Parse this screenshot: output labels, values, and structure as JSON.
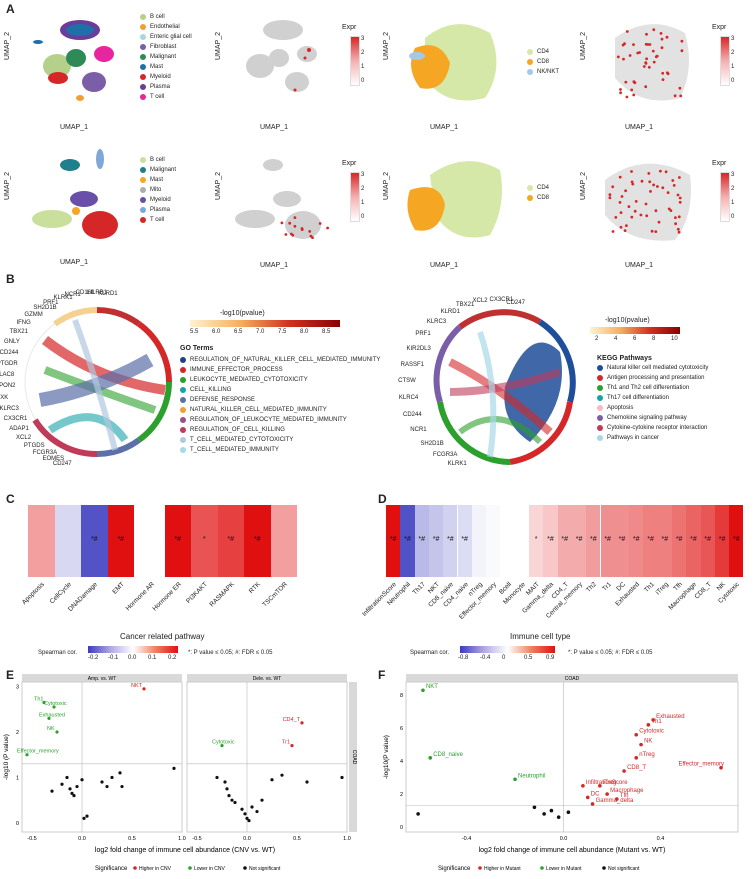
{
  "panel_labels": {
    "a": "A",
    "b": "B",
    "c": "C",
    "d": "D",
    "e": "E",
    "f": "F"
  },
  "umap": {
    "xlabel": "UMAP_1",
    "ylabel": "UMAP_2",
    "expr_label": "Expr",
    "row1_celltypes": [
      "B cell",
      "Endothelial",
      "Enteric glial cell",
      "Fibroblast",
      "Malignant",
      "Mast",
      "Myeloid",
      "Plasma",
      "T cell"
    ],
    "row1_colors": [
      "#b5d08a",
      "#f0a030",
      "#a6d8d8",
      "#7b5ea8",
      "#2e8b57",
      "#1f6fa8",
      "#d62728",
      "#6a3d9a",
      "#e6259e"
    ],
    "row1_scale_ticks": [
      "3",
      "2",
      "1",
      "0"
    ],
    "row1_tsubtypes": [
      "CD4",
      "CD8",
      "NK/NKT"
    ],
    "row1_tsub_colors": [
      "#d6e8a8",
      "#f5a623",
      "#a6c8e8"
    ],
    "row1_scale2_ticks": [
      "3",
      "2",
      "1",
      "0"
    ],
    "row2_celltypes": [
      "B cell",
      "Malignant",
      "Mast",
      "Mito",
      "Myeloid",
      "Plasma",
      "T cell"
    ],
    "row2_colors": [
      "#c9e09c",
      "#1f7f8a",
      "#f5a623",
      "#aeaeae",
      "#6a4fa8",
      "#7fa8d8",
      "#d62728"
    ],
    "row2_scale_ticks": [
      "3",
      "2",
      "1",
      "0"
    ],
    "row2_tsubtypes": [
      "CD4",
      "CD8"
    ],
    "row2_tsub_colors": [
      "#d6e8a8",
      "#f5a623"
    ],
    "row2_scale2_ticks": [
      "3",
      "2",
      "1",
      "0"
    ]
  },
  "go": {
    "genes": [
      "KLRD1",
      "LILRB1",
      "CD160",
      "NCR1",
      "KLRK1",
      "PRF1",
      "SH2D1B",
      "GZMM",
      "IFNG",
      "TBX21",
      "GNLY",
      "CD244",
      "PTGDR",
      "PLAC8",
      "SPON2",
      "TXK",
      "KLRC3",
      "CX3CR1",
      "ADAP1",
      "XCL2",
      "PTGDS",
      "FCGR3A",
      "EOMES",
      "CD247"
    ],
    "scale_title": "-log10(pvalue)",
    "scale_ticks": [
      "5.5",
      "6.0",
      "6.5",
      "7.0",
      "7.5",
      "8.0",
      "8.5"
    ],
    "terms_title": "GO Terms",
    "terms": [
      "REGULATION_OF_NATURAL_KILLER_CELL_MEDIATED_IMMUNITY",
      "IMMUNE_EFFECTOR_PROCESS",
      "LEUKOCYTE_MEDIATED_CYTOTOXICITY",
      "CELL_KILLING",
      "DEFENSE_RESPONSE",
      "NATURAL_KILLER_CELL_MEDIATED_IMMUNITY",
      "REGULATION_OF_LEUKOCYTE_MEDIATED_IMMUNITY",
      "REGULATION_OF_CELL_KILLING",
      "T_CELL_MEDIATED_CYTOTOXICITY",
      "T_CELL_MEDIATED_IMMUNITY"
    ],
    "term_colors": [
      "#1f3f8f",
      "#d62728",
      "#2ca02c",
      "#17a2a8",
      "#5b6fa8",
      "#f0a030",
      "#9b4f8a",
      "#c03a5a",
      "#b0c8e0",
      "#a8d8e8"
    ]
  },
  "kegg": {
    "genes": [
      "CD247",
      "CX3CR1",
      "XCL2",
      "TBX21",
      "KLRD1",
      "KLRC3",
      "PRF1",
      "KIR2DL3",
      "RASSF1",
      "CTSW",
      "KLRC4",
      "CD244",
      "NCR1",
      "SH2D1B",
      "FCGR3A",
      "KLRK1"
    ],
    "scale_title": "-log10(pvalue)",
    "scale_ticks": [
      "2",
      "4",
      "6",
      "8",
      "10"
    ],
    "title": "KEGG Pathways",
    "pathways": [
      "Natural killer cell mediated cytotoxicity",
      "Antigen processing and presentation",
      "Th1 and Th2 cell differentiation",
      "Th17 cell differentiation",
      "Apoptosis",
      "Chemokine signaling pathway",
      "Cytokine-cytokine receptor interaction",
      "Pathways in cancer"
    ],
    "pathway_colors": [
      "#1f4e9a",
      "#d62728",
      "#2ca02c",
      "#17a2a8",
      "#f8b8c8",
      "#7b5ea8",
      "#c03a5a",
      "#a8d8e8"
    ]
  },
  "heatmap_c": {
    "title": "Cancer related pathway",
    "legend_title": "Spearman cor.",
    "legend_ticks": [
      "-0.2",
      "-0.1",
      "0.0",
      "0.1",
      "0.2"
    ],
    "note": "*: P value ≤ 0.05; #: FDR ≤ 0.05",
    "categories": [
      "Apoptosis",
      "CellCycle",
      "DNADamage",
      "EMT",
      "Hormone AR",
      "Hormone ER",
      "PI3KAKT",
      "RASMAPK",
      "RTK",
      "TSCmTOR"
    ],
    "values": [
      0.1,
      -0.05,
      -0.22,
      0.25,
      0.0,
      0.25,
      0.18,
      0.2,
      0.26,
      0.1
    ],
    "marks": [
      "",
      "",
      "*#",
      "*#",
      "",
      "*#",
      "*",
      "*#",
      "*#",
      ""
    ]
  },
  "heatmap_d": {
    "title": "Immune cell type",
    "legend_title": "Spearman cor.",
    "legend_ticks": [
      "-0.8",
      "-0.4",
      "0",
      "0.5",
      "0.9"
    ],
    "note": "*: P value ≤ 0.05; #: FDR ≤ 0.05",
    "categories": [
      "InfiltrationScore",
      "Neutrophil",
      "Th17",
      "NKT",
      "CD8_naive",
      "CD4_naive",
      "nTreg",
      "Effector_memory",
      "Bcell",
      "Monocyte",
      "MAIT",
      "Gamma_delta",
      "CD4_T",
      "Central_memory",
      "Th2",
      "Tr1",
      "DC",
      "Exhausted",
      "Th1",
      "iTreg",
      "Tfh",
      "Macrophage",
      "CD8_T",
      "NK",
      "Cytotoxic"
    ],
    "values": [
      0.85,
      -0.75,
      -0.3,
      -0.25,
      -0.2,
      -0.15,
      -0.05,
      -0.02,
      0.0,
      0.0,
      0.15,
      0.2,
      0.3,
      0.3,
      0.35,
      0.4,
      0.4,
      0.42,
      0.45,
      0.45,
      0.5,
      0.55,
      0.6,
      0.7,
      0.85
    ],
    "marks": [
      "*#",
      "*#",
      "*#",
      "*#",
      "*#",
      "*#",
      "",
      "",
      "",
      "",
      "*",
      "*#",
      "*#",
      "*#",
      "*#",
      "*#",
      "*#",
      "*#",
      "*#",
      "*#",
      "*#",
      "*#",
      "*#",
      "*#",
      "*#"
    ]
  },
  "volcano_e": {
    "ylabel": "-log10 (P value)",
    "xlabel": "log2 fold change of immune cell abundance (CNV vs. WT)",
    "facet_left": "Amp. vs. WT",
    "facet_right": "Dele. vs. WT",
    "strip_right": "COAD",
    "xticks_left": [
      "-0.5",
      "0.0",
      "0.5",
      "1.0"
    ],
    "xticks_right": [
      "-0.5",
      "0.0",
      "0.5",
      "1.0"
    ],
    "yticks": [
      "0",
      "1",
      "2",
      "3"
    ],
    "legend_title": "Significance",
    "legend_items": [
      "Higher in CNV",
      "Lower in CNV",
      "Not significant"
    ],
    "legend_colors": [
      "#d62728",
      "#2ca02c",
      "#111111"
    ],
    "labels_left": [
      "NKT",
      "Th1",
      "Cytotoxic",
      "Exhausted",
      "NK",
      "Effector_memory"
    ],
    "labels_right": [
      "CD4_T",
      "Cytotoxic",
      "Tr1"
    ]
  },
  "volcano_f": {
    "strip": "COAD",
    "ylabel": "-log10(P value)",
    "xlabel": "log2 fold change of immune cell abundance (Mutant vs. WT)",
    "xticks": [
      "-0.4",
      "0.0",
      "0.4"
    ],
    "yticks": [
      "0",
      "2",
      "4",
      "6",
      "8"
    ],
    "legend_title": "Significance",
    "legend_items": [
      "Higher in Mutant",
      "Lower in Mutant",
      "Not significant"
    ],
    "legend_colors": [
      "#d62728",
      "#2ca02c",
      "#111111"
    ],
    "labels": [
      "NKT",
      "CD8_naive",
      "Neutrophil",
      "Exhausted",
      "Th1",
      "Cytotoxic",
      "NK",
      "nTreg",
      "Effector_memory",
      "CD8_T",
      "InfiltrationScore",
      "iTreg",
      "DC",
      "Macrophage",
      "Tfh",
      "Gamma_delta"
    ]
  },
  "chart_data": [
    {
      "type": "heatmap",
      "title": "Cancer related pathway",
      "categories": [
        "Apoptosis",
        "CellCycle",
        "DNADamage",
        "EMT",
        "Hormone AR",
        "Hormone ER",
        "PI3KAKT",
        "RASMAPK",
        "RTK",
        "TSCmTOR"
      ],
      "values": [
        0.1,
        -0.05,
        -0.22,
        0.25,
        0.0,
        0.25,
        0.18,
        0.2,
        0.26,
        0.1
      ],
      "legend": "Spearman cor."
    },
    {
      "type": "heatmap",
      "title": "Immune cell type",
      "categories": [
        "InfiltrationScore",
        "Neutrophil",
        "Th17",
        "NKT",
        "CD8_naive",
        "CD4_naive",
        "nTreg",
        "Effector_memory",
        "Bcell",
        "Monocyte",
        "MAIT",
        "Gamma_delta",
        "CD4_T",
        "Central_memory",
        "Th2",
        "Tr1",
        "DC",
        "Exhausted",
        "Th1",
        "iTreg",
        "Tfh",
        "Macrophage",
        "CD8_T",
        "NK",
        "Cytotoxic"
      ],
      "values": [
        0.85,
        -0.75,
        -0.3,
        -0.25,
        -0.2,
        -0.15,
        -0.05,
        -0.02,
        0.0,
        0.0,
        0.15,
        0.2,
        0.3,
        0.3,
        0.35,
        0.4,
        0.4,
        0.42,
        0.45,
        0.45,
        0.5,
        0.55,
        0.6,
        0.7,
        0.85
      ],
      "legend": "Spearman cor."
    },
    {
      "type": "scatter",
      "title": "Amp. vs. WT",
      "xlabel": "log2 fold change",
      "ylabel": "-log10 (P value)",
      "points": [
        {
          "label": "NKT",
          "x": 0.62,
          "y": 2.95,
          "sig": "higher"
        },
        {
          "label": "Th1",
          "x": -0.38,
          "y": 2.65,
          "sig": "lower"
        },
        {
          "label": "Cytotoxic",
          "x": -0.28,
          "y": 2.55,
          "sig": "lower"
        },
        {
          "label": "Exhausted",
          "x": -0.33,
          "y": 2.3,
          "sig": "lower"
        },
        {
          "label": "NK",
          "x": -0.25,
          "y": 2.0,
          "sig": "lower"
        },
        {
          "label": "Effector_memory",
          "x": -0.55,
          "y": 1.5,
          "sig": "lower"
        },
        {
          "x": -0.3,
          "y": 0.7,
          "sig": "ns"
        },
        {
          "x": -0.2,
          "y": 0.85,
          "sig": "ns"
        },
        {
          "x": -0.15,
          "y": 1.0,
          "sig": "ns"
        },
        {
          "x": -0.12,
          "y": 0.75,
          "sig": "ns"
        },
        {
          "x": -0.1,
          "y": 0.65,
          "sig": "ns"
        },
        {
          "x": -0.05,
          "y": 0.8,
          "sig": "ns"
        },
        {
          "x": 0.0,
          "y": 0.95,
          "sig": "ns"
        },
        {
          "x": -0.08,
          "y": 0.6,
          "sig": "ns"
        },
        {
          "x": 0.05,
          "y": 0.15,
          "sig": "ns"
        },
        {
          "x": 0.02,
          "y": 0.1,
          "sig": "ns"
        },
        {
          "x": 0.2,
          "y": 0.9,
          "sig": "ns"
        },
        {
          "x": 0.25,
          "y": 0.8,
          "sig": "ns"
        },
        {
          "x": 0.3,
          "y": 1.0,
          "sig": "ns"
        },
        {
          "x": 0.38,
          "y": 1.1,
          "sig": "ns"
        },
        {
          "x": 0.4,
          "y": 0.8,
          "sig": "ns"
        },
        {
          "x": 0.92,
          "y": 1.2,
          "sig": "ns"
        }
      ]
    },
    {
      "type": "scatter",
      "title": "Dele. vs. WT",
      "xlabel": "log2 fold change",
      "ylabel": "-log10 (P value)",
      "points": [
        {
          "label": "CD4_T",
          "x": 0.55,
          "y": 2.2,
          "sig": "higher"
        },
        {
          "label": "Cytotoxic",
          "x": -0.25,
          "y": 1.7,
          "sig": "lower"
        },
        {
          "label": "Tr1",
          "x": 0.45,
          "y": 1.7,
          "sig": "higher"
        },
        {
          "x": -0.3,
          "y": 1.0,
          "sig": "ns"
        },
        {
          "x": -0.22,
          "y": 0.9,
          "sig": "ns"
        },
        {
          "x": -0.2,
          "y": 0.75,
          "sig": "ns"
        },
        {
          "x": -0.18,
          "y": 0.6,
          "sig": "ns"
        },
        {
          "x": -0.15,
          "y": 0.5,
          "sig": "ns"
        },
        {
          "x": -0.12,
          "y": 0.45,
          "sig": "ns"
        },
        {
          "x": -0.05,
          "y": 0.3,
          "sig": "ns"
        },
        {
          "x": -0.02,
          "y": 0.2,
          "sig": "ns"
        },
        {
          "x": 0.0,
          "y": 0.1,
          "sig": "ns"
        },
        {
          "x": 0.02,
          "y": 0.05,
          "sig": "ns"
        },
        {
          "x": 0.05,
          "y": 0.35,
          "sig": "ns"
        },
        {
          "x": 0.1,
          "y": 0.25,
          "sig": "ns"
        },
        {
          "x": 0.15,
          "y": 0.5,
          "sig": "ns"
        },
        {
          "x": 0.25,
          "y": 0.95,
          "sig": "ns"
        },
        {
          "x": 0.35,
          "y": 1.05,
          "sig": "ns"
        },
        {
          "x": 0.6,
          "y": 0.9,
          "sig": "ns"
        },
        {
          "x": 0.95,
          "y": 1.0,
          "sig": "ns"
        }
      ]
    },
    {
      "type": "scatter",
      "title": "COAD",
      "xlabel": "log2 fold change",
      "ylabel": "-log10(P value)",
      "points": [
        {
          "label": "NKT",
          "x": -0.58,
          "y": 8.3,
          "sig": "lower"
        },
        {
          "label": "CD8_naive",
          "x": -0.55,
          "y": 4.2,
          "sig": "lower"
        },
        {
          "label": "Neutrophil",
          "x": -0.2,
          "y": 2.9,
          "sig": "lower"
        },
        {
          "label": "Exhausted",
          "x": 0.37,
          "y": 6.5,
          "sig": "higher"
        },
        {
          "label": "Th1",
          "x": 0.35,
          "y": 6.2,
          "sig": "higher"
        },
        {
          "label": "Cytotoxic",
          "x": 0.3,
          "y": 5.6,
          "sig": "higher"
        },
        {
          "label": "NK",
          "x": 0.32,
          "y": 5.0,
          "sig": "higher"
        },
        {
          "label": "nTreg",
          "x": 0.3,
          "y": 4.2,
          "sig": "higher"
        },
        {
          "label": "Effector_memory",
          "x": 0.65,
          "y": 3.6,
          "sig": "higher"
        },
        {
          "label": "CD8_T",
          "x": 0.25,
          "y": 3.4,
          "sig": "higher"
        },
        {
          "label": "InfiltrationScore",
          "x": 0.08,
          "y": 2.5,
          "sig": "higher"
        },
        {
          "label": "iTreg",
          "x": 0.15,
          "y": 2.5,
          "sig": "higher"
        },
        {
          "label": "DC",
          "x": 0.1,
          "y": 1.8,
          "sig": "higher"
        },
        {
          "label": "Macrophage",
          "x": 0.18,
          "y": 2.0,
          "sig": "higher"
        },
        {
          "label": "Tfh",
          "x": 0.22,
          "y": 1.7,
          "sig": "higher"
        },
        {
          "label": "Gamma_delta",
          "x": 0.12,
          "y": 1.4,
          "sig": "higher"
        },
        {
          "x": -0.12,
          "y": 1.2,
          "sig": "ns"
        },
        {
          "x": -0.08,
          "y": 0.8,
          "sig": "ns"
        },
        {
          "x": -0.02,
          "y": 0.6,
          "sig": "ns"
        },
        {
          "x": -0.05,
          "y": 1.0,
          "sig": "ns"
        },
        {
          "x": 0.02,
          "y": 0.9,
          "sig": "ns"
        },
        {
          "x": -0.6,
          "y": 0.8,
          "sig": "ns"
        }
      ]
    }
  ]
}
